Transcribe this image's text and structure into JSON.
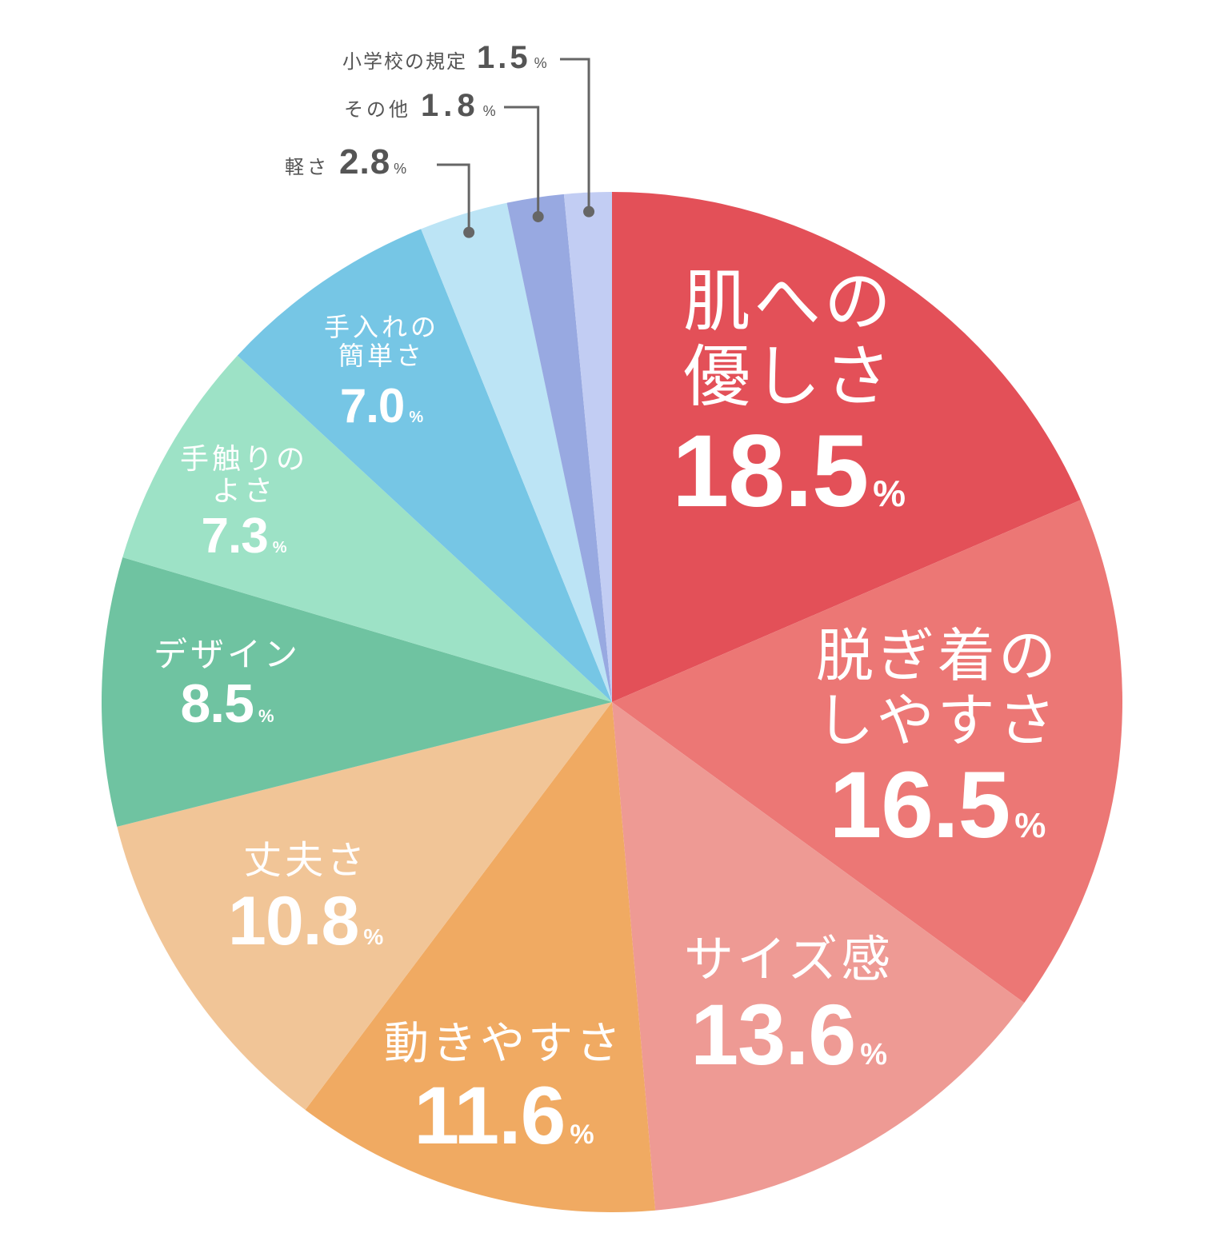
{
  "chart_data": {
    "type": "pie",
    "title": "",
    "start_angle_deg": 0,
    "direction": "clockwise",
    "unit": "%",
    "categories": [
      "肌への優しさ",
      "脱ぎ着のしやすさ",
      "サイズ感",
      "動きやすさ",
      "丈夫さ",
      "デザイン",
      "手触りのよさ",
      "手入れの簡単さ",
      "軽さ",
      "その他",
      "小学校の規定"
    ],
    "values": [
      18.5,
      16.5,
      13.6,
      11.6,
      10.8,
      8.5,
      7.3,
      7.0,
      2.8,
      1.8,
      1.5
    ],
    "colors": [
      "#E35058",
      "#EC7775",
      "#EE9A94",
      "#F0AA62",
      "#F1C597",
      "#6FC3A1",
      "#9DE2C6",
      "#76C6E5",
      "#BCE4F5",
      "#98A9E1",
      "#C2CDF3"
    ],
    "legend": "none",
    "data_labels": "inside for large slices; leader-line callouts for 軽さ, その他, 小学校の規定"
  },
  "labels": {
    "s0": {
      "name1": "肌への",
      "name2": "優しさ",
      "value": "18.5",
      "pct": "%"
    },
    "s1": {
      "name1": "脱ぎ着の",
      "name2": "しやすさ",
      "value": "16.5",
      "pct": "%"
    },
    "s2": {
      "name1": "サイズ感",
      "value": "13.6",
      "pct": "%"
    },
    "s3": {
      "name1": "動きやすさ",
      "value": "11.6",
      "pct": "%"
    },
    "s4": {
      "name1": "丈夫さ",
      "value": "10.8",
      "pct": "%"
    },
    "s5": {
      "name1": "デザイン",
      "value": "8.5",
      "pct": "%"
    },
    "s6": {
      "name1": "手触りの",
      "name2": "よさ",
      "value": "7.3",
      "pct": "%"
    },
    "s7": {
      "name1": "手入れの",
      "name2": "簡単さ",
      "value": "7.0",
      "pct": "%"
    }
  },
  "callouts": {
    "c8": {
      "name": "軽さ",
      "value": "2.8",
      "pct": "%"
    },
    "c9": {
      "name": "その他",
      "value": "1.8",
      "pct": "%"
    },
    "c10": {
      "name": "小学校の規定",
      "value": "1.5",
      "pct": "%"
    }
  },
  "style": {
    "label_color": "#FFFFFF",
    "callout_color": "#555555",
    "leader_line_color": "#666666"
  }
}
